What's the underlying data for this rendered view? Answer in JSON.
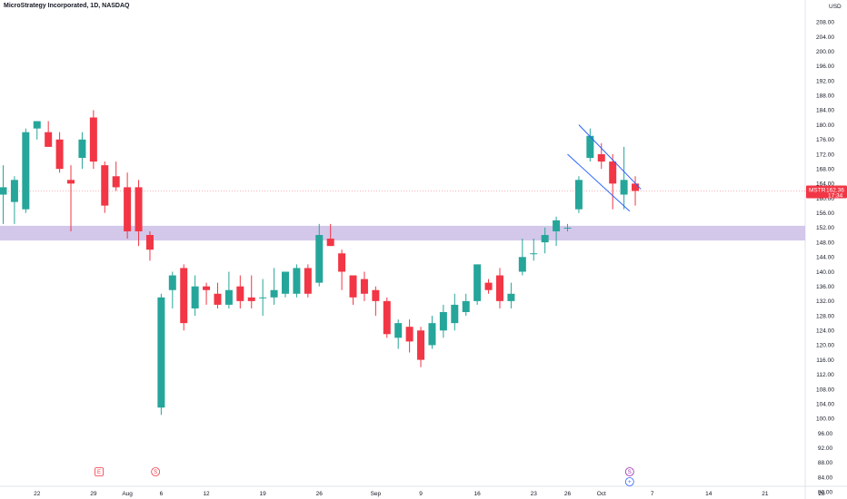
{
  "header": {
    "symbol_title": "MicroStrategy Incorporated, 1D, NASDAQ",
    "currency": "USD"
  },
  "price_tag": {
    "ticker": "MSTR",
    "price": "162.36",
    "countdown": "17:34",
    "color": "#f23645"
  },
  "event_markers": [
    {
      "label": "E",
      "color": "#f23645",
      "date_index": 8.5
    },
    {
      "label": "S",
      "color": "#f23645",
      "date_index": 13.5
    },
    {
      "label": "S",
      "color": "#9c27b0",
      "date_index": 55.5
    },
    {
      "label": "+",
      "color": "#2962ff",
      "date_index": 55.5
    }
  ],
  "colors": {
    "up": "#26a69a",
    "down": "#f23645",
    "zone": "#d1c4e9",
    "channel": "#2962ff",
    "price_line": "#f23645"
  },
  "chart_data": {
    "type": "candlestick",
    "ylim": [
      78,
      214
    ],
    "y_ticks": [
      80,
      84,
      88,
      92,
      96,
      100,
      104,
      108,
      112,
      116,
      120,
      124,
      128,
      132,
      136,
      140,
      144,
      148,
      152,
      156,
      160,
      164,
      168,
      172,
      176,
      180,
      184,
      188,
      192,
      196,
      200,
      204,
      208
    ],
    "x_ticks": [
      {
        "label": "22",
        "index": 3
      },
      {
        "label": "29",
        "index": 8
      },
      {
        "label": "Aug",
        "index": 11
      },
      {
        "label": "6",
        "index": 14
      },
      {
        "label": "12",
        "index": 18
      },
      {
        "label": "19",
        "index": 23
      },
      {
        "label": "26",
        "index": 28
      },
      {
        "label": "Sep",
        "index": 33
      },
      {
        "label": "9",
        "index": 37
      },
      {
        "label": "16",
        "index": 42
      },
      {
        "label": "23",
        "index": 47
      },
      {
        "label": "26",
        "index": 50
      },
      {
        "label": "Oct",
        "index": 53
      },
      {
        "label": "7",
        "index": 57.5
      },
      {
        "label": "14",
        "index": 62.5
      },
      {
        "label": "21",
        "index": 67.5
      },
      {
        "label": "28",
        "index": 72.5
      }
    ],
    "candles": [
      {
        "o": 161,
        "h": 169,
        "l": 153,
        "c": 163
      },
      {
        "o": 159,
        "h": 166,
        "l": 153,
        "c": 165
      },
      {
        "o": 157,
        "h": 179,
        "l": 156,
        "c": 178
      },
      {
        "o": 179,
        "h": 181,
        "l": 176,
        "c": 181
      },
      {
        "o": 178,
        "h": 181,
        "l": 174,
        "c": 174
      },
      {
        "o": 176,
        "h": 178,
        "l": 167,
        "c": 168
      },
      {
        "o": 165,
        "h": 169,
        "l": 151,
        "c": 164
      },
      {
        "o": 171,
        "h": 178,
        "l": 168,
        "c": 176
      },
      {
        "o": 182,
        "h": 184,
        "l": 168,
        "c": 170
      },
      {
        "o": 169,
        "h": 170,
        "l": 156,
        "c": 158
      },
      {
        "o": 166,
        "h": 170,
        "l": 162,
        "c": 163
      },
      {
        "o": 163,
        "h": 167,
        "l": 149,
        "c": 151
      },
      {
        "o": 163,
        "h": 165,
        "l": 147,
        "c": 151
      },
      {
        "o": 150,
        "h": 151,
        "l": 143,
        "c": 146
      },
      {
        "o": 103,
        "h": 134,
        "l": 101,
        "c": 133
      },
      {
        "o": 135,
        "h": 140,
        "l": 130,
        "c": 139
      },
      {
        "o": 141,
        "h": 142,
        "l": 124,
        "c": 126
      },
      {
        "o": 130,
        "h": 139,
        "l": 128,
        "c": 136
      },
      {
        "o": 136,
        "h": 137,
        "l": 131,
        "c": 135
      },
      {
        "o": 134,
        "h": 137,
        "l": 130,
        "c": 131
      },
      {
        "o": 131,
        "h": 140,
        "l": 130,
        "c": 135
      },
      {
        "o": 136,
        "h": 139,
        "l": 130,
        "c": 132
      },
      {
        "o": 133,
        "h": 139,
        "l": 130,
        "c": 132
      },
      {
        "o": 133,
        "h": 138,
        "l": 128,
        "c": 133
      },
      {
        "o": 133,
        "h": 141,
        "l": 131,
        "c": 135
      },
      {
        "o": 134,
        "h": 140,
        "l": 133,
        "c": 140
      },
      {
        "o": 134,
        "h": 142,
        "l": 133,
        "c": 141
      },
      {
        "o": 141,
        "h": 142,
        "l": 133,
        "c": 134
      },
      {
        "o": 137,
        "h": 153,
        "l": 136,
        "c": 150
      },
      {
        "o": 149,
        "h": 153,
        "l": 147,
        "c": 147
      },
      {
        "o": 145,
        "h": 146,
        "l": 135,
        "c": 140
      },
      {
        "o": 139,
        "h": 139,
        "l": 131,
        "c": 133
      },
      {
        "o": 138,
        "h": 140,
        "l": 132,
        "c": 134
      },
      {
        "o": 135,
        "h": 136,
        "l": 128,
        "c": 132
      },
      {
        "o": 132,
        "h": 133,
        "l": 122,
        "c": 123
      },
      {
        "o": 122,
        "h": 127,
        "l": 119,
        "c": 126
      },
      {
        "o": 125,
        "h": 127,
        "l": 118,
        "c": 121
      },
      {
        "o": 124,
        "h": 125,
        "l": 114,
        "c": 116
      },
      {
        "o": 120,
        "h": 128,
        "l": 119,
        "c": 126
      },
      {
        "o": 124,
        "h": 131,
        "l": 122,
        "c": 129
      },
      {
        "o": 126,
        "h": 134,
        "l": 124,
        "c": 131
      },
      {
        "o": 129,
        "h": 134,
        "l": 128,
        "c": 132
      },
      {
        "o": 132,
        "h": 142,
        "l": 131,
        "c": 142
      },
      {
        "o": 137,
        "h": 138,
        "l": 134,
        "c": 135
      },
      {
        "o": 139,
        "h": 141,
        "l": 130,
        "c": 132
      },
      {
        "o": 132,
        "h": 137,
        "l": 130,
        "c": 134
      },
      {
        "o": 140,
        "h": 149,
        "l": 139,
        "c": 144
      },
      {
        "o": 145,
        "h": 149,
        "l": 143,
        "c": 145
      },
      {
        "o": 148,
        "h": 152,
        "l": 145,
        "c": 150
      },
      {
        "o": 151,
        "h": 155,
        "l": 147,
        "c": 154
      },
      {
        "o": 152,
        "h": 153,
        "l": 151,
        "c": 152
      },
      {
        "o": 157,
        "h": 166,
        "l": 156,
        "c": 165
      },
      {
        "o": 171,
        "h": 179,
        "l": 170,
        "c": 177
      },
      {
        "o": 172,
        "h": 175,
        "l": 168,
        "c": 170
      },
      {
        "o": 170,
        "h": 172,
        "l": 157,
        "c": 164
      },
      {
        "o": 161,
        "h": 174,
        "l": 157,
        "c": 165
      },
      {
        "o": 164,
        "h": 166,
        "l": 158,
        "c": 162
      }
    ],
    "support_zone": [
      148.5,
      152.5
    ],
    "channel_lines": [
      {
        "from": {
          "index": 51,
          "price": 180
        },
        "to": {
          "index": 56.5,
          "price": 162.5
        }
      },
      {
        "from": {
          "index": 50,
          "price": 172
        },
        "to": {
          "index": 55.5,
          "price": 156.5
        }
      }
    ]
  }
}
